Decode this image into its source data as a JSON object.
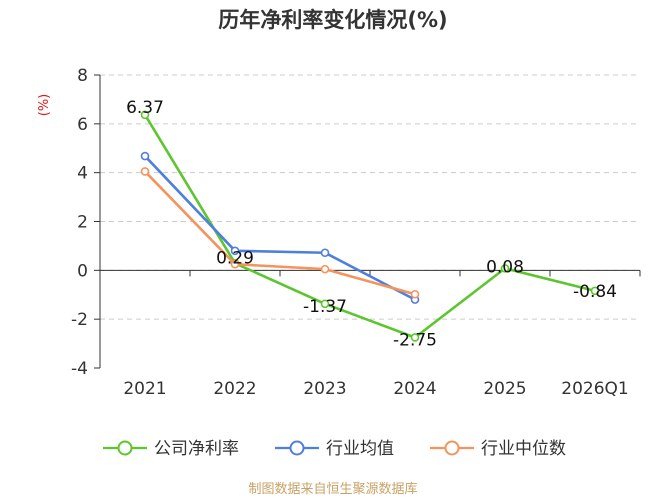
{
  "chart_data": {
    "type": "line",
    "title": "历年净利率变化情况(%)",
    "unit_label": "(%)",
    "categories": [
      "2021",
      "2022",
      "2023",
      "2024",
      "2025",
      "2026Q1"
    ],
    "ylim": [
      -4,
      8
    ],
    "yticks": [
      "-4",
      "-2",
      "0",
      "2",
      "4",
      "6",
      "8"
    ],
    "grid": true,
    "legend_position": "bottom",
    "series": [
      {
        "name": "公司净利率",
        "color": "#5cc62e",
        "values": [
          6.37,
          0.29,
          -1.37,
          -2.75,
          0.08,
          -0.84
        ],
        "labels": [
          "6.37",
          "0.29",
          "-1.37",
          "-2.75",
          "0.08",
          "-0.84"
        ]
      },
      {
        "name": "行业均值",
        "color": "#4f7fdc",
        "values": [
          4.68,
          0.8,
          0.72,
          -1.2,
          null,
          null
        ]
      },
      {
        "name": "行业中位数",
        "color": "#f4935c",
        "values": [
          4.05,
          0.25,
          0.05,
          -0.98,
          null,
          null
        ]
      }
    ]
  },
  "source": "制图数据来自恒生聚源数据库"
}
